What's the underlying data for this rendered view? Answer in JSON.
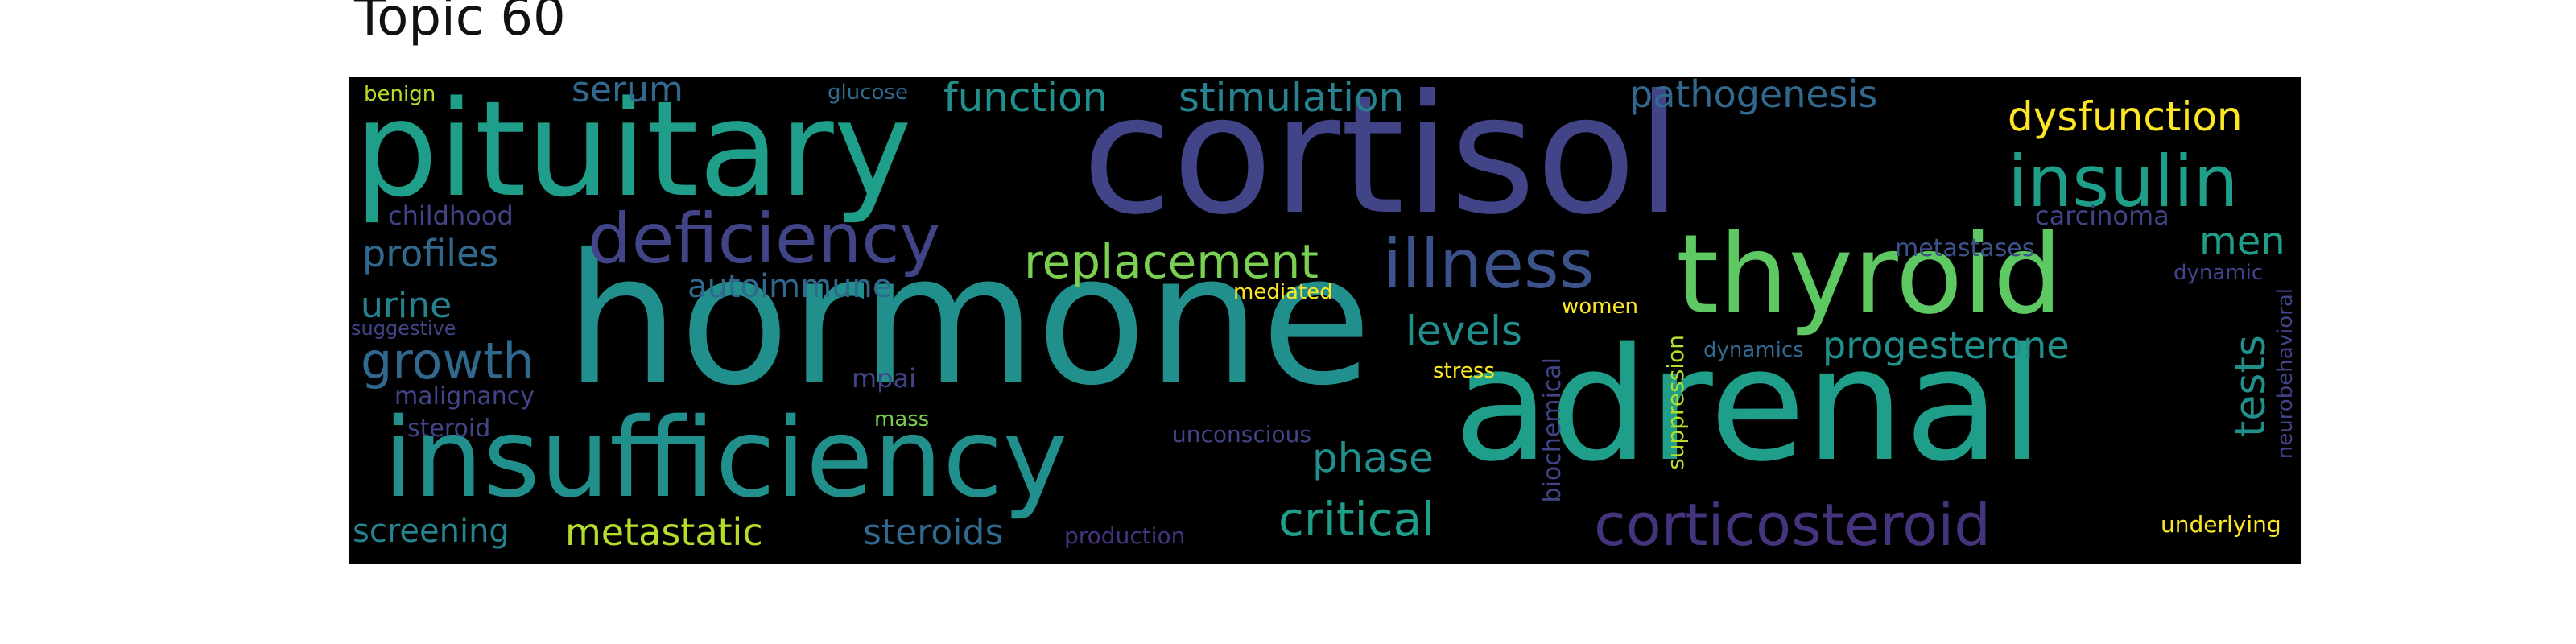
{
  "figure": {
    "title": "Topic 60"
  },
  "colors": {
    "teal": "#21908d",
    "teal2": "#1f9e89",
    "blue": "#3b528b",
    "indigo": "#414487",
    "purple": "#46337e",
    "green": "#5ec962",
    "lightgreen": "#7ad151",
    "yellow": "#fde725",
    "yellowgreen": "#b5de2b",
    "cyan": "#26828e",
    "slate": "#31688e"
  },
  "words": [
    {
      "text": "hormone",
      "color": "teal"
    },
    {
      "text": "cortisol",
      "color": "indigo"
    },
    {
      "text": "adrenal",
      "color": "teal2"
    },
    {
      "text": "pituitary",
      "color": "teal2"
    },
    {
      "text": "insufficiency",
      "color": "teal"
    },
    {
      "text": "thyroid",
      "color": "green"
    },
    {
      "text": "insulin",
      "color": "teal2"
    },
    {
      "text": "deficiency",
      "color": "indigo"
    },
    {
      "text": "illness",
      "color": "blue"
    },
    {
      "text": "replacement",
      "color": "lightgreen"
    },
    {
      "text": "corticosteroid",
      "color": "purple"
    },
    {
      "text": "critical",
      "color": "teal2"
    },
    {
      "text": "dysfunction",
      "color": "yellow"
    },
    {
      "text": "function",
      "color": "teal"
    },
    {
      "text": "stimulation",
      "color": "cyan"
    },
    {
      "text": "pathogenesis",
      "color": "slate"
    },
    {
      "text": "progesterone",
      "color": "teal"
    },
    {
      "text": "tests",
      "color": "teal"
    },
    {
      "text": "men",
      "color": "teal2"
    },
    {
      "text": "growth",
      "color": "slate"
    },
    {
      "text": "levels",
      "color": "teal"
    },
    {
      "text": "phase",
      "color": "teal"
    },
    {
      "text": "metastatic",
      "color": "yellowgreen"
    },
    {
      "text": "steroids",
      "color": "slate"
    },
    {
      "text": "screening",
      "color": "cyan"
    },
    {
      "text": "profiles",
      "color": "slate"
    },
    {
      "text": "urine",
      "color": "cyan"
    },
    {
      "text": "serum",
      "color": "slate"
    },
    {
      "text": "autoimmune",
      "color": "slate"
    },
    {
      "text": "suppression",
      "color": "yellowgreen"
    },
    {
      "text": "biochemical",
      "color": "indigo"
    },
    {
      "text": "childhood",
      "color": "indigo"
    },
    {
      "text": "carcinoma",
      "color": "indigo"
    },
    {
      "text": "metastases",
      "color": "blue"
    },
    {
      "text": "dynamic",
      "color": "indigo"
    },
    {
      "text": "neurobehavioral",
      "color": "indigo"
    },
    {
      "text": "dynamics",
      "color": "slate"
    },
    {
      "text": "malignancy",
      "color": "indigo"
    },
    {
      "text": "mpai",
      "color": "indigo"
    },
    {
      "text": "steroid",
      "color": "indigo"
    },
    {
      "text": "mass",
      "color": "lightgreen"
    },
    {
      "text": "unconscious",
      "color": "indigo"
    },
    {
      "text": "production",
      "color": "purple"
    },
    {
      "text": "stress",
      "color": "yellow"
    },
    {
      "text": "women",
      "color": "yellow"
    },
    {
      "text": "mediated",
      "color": "yellow"
    },
    {
      "text": "suggestive",
      "color": "indigo"
    },
    {
      "text": "benign",
      "color": "yellowgreen"
    },
    {
      "text": "glucose",
      "color": "slate"
    },
    {
      "text": "underlying",
      "color": "yellow"
    }
  ]
}
